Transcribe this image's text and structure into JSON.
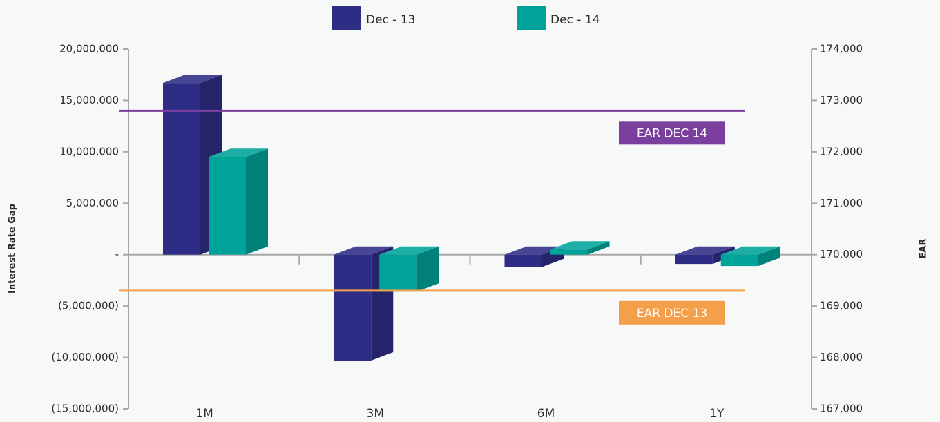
{
  "chart_data": {
    "type": "bar3d",
    "categories": [
      "1M",
      "3M",
      "6M",
      "1Y"
    ],
    "series": [
      {
        "name": "Dec - 13",
        "color": "#2e2d86",
        "values": [
          16700000,
          -10300000,
          -1200000,
          -900000
        ]
      },
      {
        "name": "Dec - 14",
        "color": "#00a39a",
        "values": [
          9500000,
          -3600000,
          500000,
          -1100000
        ]
      }
    ],
    "ylabel": "Interest Rate Gap",
    "y2label": "EAR",
    "ylim": [
      -15000000,
      20000000
    ],
    "yticks": [
      {
        "value": -15000000,
        "label": "(15,000,000)"
      },
      {
        "value": -10000000,
        "label": "(10,000,000)"
      },
      {
        "value": -5000000,
        "label": "(5,000,000)"
      },
      {
        "value": 0,
        "label": "-"
      },
      {
        "value": 5000000,
        "label": "5,000,000"
      },
      {
        "value": 10000000,
        "label": "10,000,000"
      },
      {
        "value": 15000000,
        "label": "15,000,000"
      },
      {
        "value": 20000000,
        "label": "20,000,000"
      }
    ],
    "y2lim": [
      167000,
      174000
    ],
    "y2ticks": [
      {
        "value": 167000,
        "label": "167,000"
      },
      {
        "value": 168000,
        "label": "168,000"
      },
      {
        "value": 169000,
        "label": "169,000"
      },
      {
        "value": 170000,
        "label": "170,000"
      },
      {
        "value": 171000,
        "label": "171,000"
      },
      {
        "value": 172000,
        "label": "172,000"
      },
      {
        "value": 173000,
        "label": "173,000"
      },
      {
        "value": 174000,
        "label": "174,000"
      }
    ],
    "reference_lines": [
      {
        "label": "EAR DEC 14",
        "value": 172800,
        "axis": "y2",
        "color": "#7b3f9e"
      },
      {
        "label": "EAR DEC 13",
        "value": 169300,
        "axis": "y2",
        "color": "#f4a04a"
      }
    ],
    "legend": "top"
  }
}
